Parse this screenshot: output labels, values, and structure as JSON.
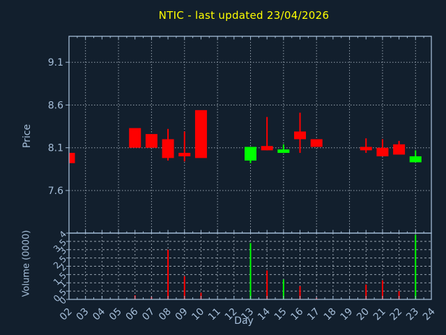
{
  "title": {
    "text": "NTIC - last updated 23/04/2026"
  },
  "colors": {
    "background": "#121f2d",
    "axis": "#a2bcd6",
    "grid": "#98a4b0",
    "text": "#a6bfda",
    "title": "#ffff00",
    "up": "#00ff00",
    "down": "#ff0000"
  },
  "chart_data": {
    "type": "candlestick",
    "title": "NTIC - last updated 23/04/2026",
    "xlabel": "Day",
    "x_categories": [
      "02",
      "03",
      "04",
      "05",
      "06",
      "07",
      "08",
      "09",
      "10",
      "11",
      "12",
      "13",
      "14",
      "15",
      "16",
      "17",
      "18",
      "19",
      "20",
      "21",
      "22",
      "23",
      "24"
    ],
    "legend": "none",
    "grid": "dashed",
    "panels": [
      {
        "name": "price",
        "type": "candlestick",
        "ylabel": "Price",
        "yticks": [
          9.1,
          8.6,
          8.1,
          7.6
        ],
        "ylim": [
          7.1,
          9.4
        ],
        "candles": [
          {
            "day": "02",
            "open": 8.04,
            "high": 8.04,
            "low": 7.92,
            "close": 7.92,
            "direction": "down"
          },
          {
            "day": "06",
            "open": 8.33,
            "high": 8.33,
            "low": 8.1,
            "close": 8.1,
            "direction": "down"
          },
          {
            "day": "07",
            "open": 8.26,
            "high": 8.26,
            "low": 8.1,
            "close": 8.1,
            "direction": "down"
          },
          {
            "day": "08",
            "open": 8.2,
            "high": 8.32,
            "low": 7.95,
            "close": 7.98,
            "direction": "down"
          },
          {
            "day": "09",
            "open": 8.04,
            "high": 8.29,
            "low": 7.94,
            "close": 8.0,
            "direction": "down"
          },
          {
            "day": "10",
            "open": 8.54,
            "high": 8.54,
            "low": 7.98,
            "close": 7.98,
            "direction": "down"
          },
          {
            "day": "13",
            "open": 7.95,
            "high": 8.11,
            "low": 7.92,
            "close": 8.11,
            "direction": "up"
          },
          {
            "day": "14",
            "open": 8.12,
            "high": 8.46,
            "low": 8.07,
            "close": 8.07,
            "direction": "down"
          },
          {
            "day": "15",
            "open": 8.04,
            "high": 8.14,
            "low": 8.04,
            "close": 8.08,
            "direction": "up"
          },
          {
            "day": "16",
            "open": 8.29,
            "high": 8.51,
            "low": 8.04,
            "close": 8.2,
            "direction": "down"
          },
          {
            "day": "17",
            "open": 8.2,
            "high": 8.2,
            "low": 8.11,
            "close": 8.11,
            "direction": "down"
          },
          {
            "day": "20",
            "open": 8.11,
            "high": 8.21,
            "low": 8.04,
            "close": 8.07,
            "direction": "down"
          },
          {
            "day": "21",
            "open": 8.1,
            "high": 8.2,
            "low": 8.0,
            "close": 8.0,
            "direction": "down"
          },
          {
            "day": "22",
            "open": 8.14,
            "high": 8.18,
            "low": 8.02,
            "close": 8.02,
            "direction": "down"
          },
          {
            "day": "23",
            "open": 7.93,
            "high": 8.07,
            "low": 7.93,
            "close": 8.0,
            "direction": "up"
          }
        ]
      },
      {
        "name": "volume",
        "type": "bar",
        "ylabel": "Volume (0000)",
        "yticks": [
          4,
          3.5,
          3,
          2.5,
          2,
          1.5,
          1,
          0.5,
          0
        ],
        "ylim": [
          0,
          4
        ],
        "bars": [
          {
            "day": "06",
            "value": 0.25,
            "direction": "down"
          },
          {
            "day": "07",
            "value": 0.15,
            "direction": "down"
          },
          {
            "day": "08",
            "value": 3.0,
            "direction": "down"
          },
          {
            "day": "09",
            "value": 1.4,
            "direction": "down"
          },
          {
            "day": "10",
            "value": 0.4,
            "direction": "down"
          },
          {
            "day": "13",
            "value": 3.4,
            "direction": "up"
          },
          {
            "day": "14",
            "value": 1.75,
            "direction": "down"
          },
          {
            "day": "15",
            "value": 1.2,
            "direction": "up"
          },
          {
            "day": "16",
            "value": 0.8,
            "direction": "down"
          },
          {
            "day": "17",
            "value": 0.1,
            "direction": "down"
          },
          {
            "day": "20",
            "value": 0.9,
            "direction": "down"
          },
          {
            "day": "21",
            "value": 1.15,
            "direction": "down"
          },
          {
            "day": "22",
            "value": 0.5,
            "direction": "down"
          },
          {
            "day": "23",
            "value": 3.9,
            "direction": "up"
          }
        ]
      }
    ]
  }
}
